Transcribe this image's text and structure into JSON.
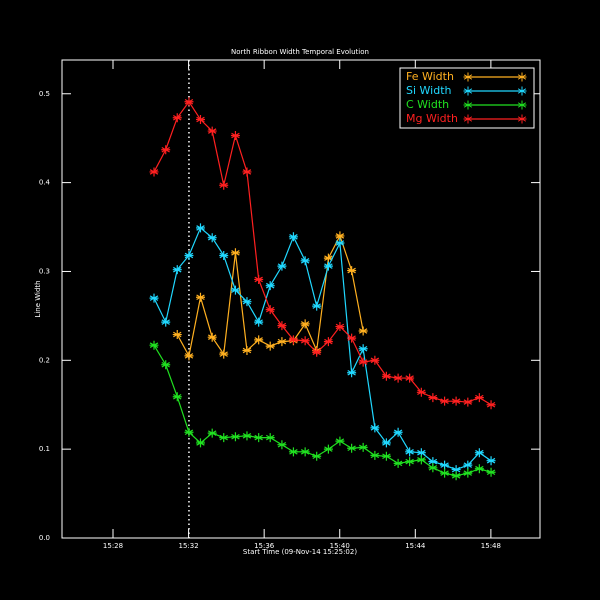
{
  "chart_data": {
    "type": "line",
    "title": "North Ribbon Width Temporal Evolution",
    "xlabel": "Start Time (09-Nov-14 15:25:02)",
    "ylabel": "Line Width",
    "x": [
      30.17,
      30.79,
      31.4,
      32.02,
      32.63,
      33.25,
      33.86,
      34.48,
      35.09,
      35.71,
      36.32,
      36.94,
      37.55,
      38.17,
      38.78,
      39.4,
      40.01,
      40.63,
      41.24,
      41.86,
      42.47,
      43.09,
      43.7,
      44.32,
      44.93,
      45.55,
      46.16,
      46.78,
      47.39,
      48.01
    ],
    "series": [
      {
        "name": "Fe Width",
        "color": "#ffb020",
        "values": [
          null,
          null,
          0.229,
          0.205,
          0.271,
          0.226,
          0.207,
          0.321,
          0.211,
          0.223,
          0.216,
          0.221,
          0.222,
          0.241,
          0.211,
          0.315,
          0.34,
          0.301,
          0.233,
          null,
          null,
          null,
          null,
          null,
          null,
          null,
          null,
          null,
          null,
          null
        ]
      },
      {
        "name": "Si Width",
        "color": "#20d8ff",
        "values": [
          0.27,
          0.243,
          0.302,
          0.318,
          0.349,
          0.338,
          0.318,
          0.279,
          0.266,
          0.243,
          0.284,
          0.306,
          0.339,
          0.312,
          0.261,
          0.306,
          0.332,
          0.186,
          0.213,
          0.124,
          0.107,
          0.119,
          0.097,
          0.096,
          0.086,
          0.082,
          0.077,
          0.082,
          0.096,
          0.087
        ]
      },
      {
        "name": "C Width",
        "color": "#20e020",
        "values": [
          0.217,
          0.195,
          0.159,
          0.119,
          0.107,
          0.118,
          0.113,
          0.114,
          0.115,
          0.113,
          0.113,
          0.105,
          0.097,
          0.097,
          0.092,
          0.1,
          0.109,
          0.101,
          0.102,
          0.093,
          0.092,
          0.084,
          0.086,
          0.088,
          0.079,
          0.073,
          0.07,
          0.073,
          0.078,
          0.074
        ]
      },
      {
        "name": "Mg Width",
        "color": "#ff2020",
        "values": [
          0.412,
          0.437,
          0.473,
          0.491,
          0.471,
          0.458,
          0.397,
          0.453,
          0.412,
          0.291,
          0.257,
          0.239,
          0.223,
          0.222,
          0.209,
          0.221,
          0.238,
          0.225,
          0.198,
          0.2,
          0.182,
          0.18,
          0.18,
          0.164,
          0.158,
          0.154,
          0.154,
          0.153,
          0.158,
          0.15
        ]
      }
    ],
    "xlim": [
      25.3,
      50.6
    ],
    "xticks": [
      {
        "value": 28,
        "label": "15:28"
      },
      {
        "value": 32,
        "label": "15:32"
      },
      {
        "value": 36,
        "label": "15:36"
      },
      {
        "value": 40,
        "label": "15:40"
      },
      {
        "value": 44,
        "label": "15:44"
      },
      {
        "value": 48,
        "label": "15:48"
      }
    ],
    "ylim": [
      0,
      0.538
    ],
    "yticks": [
      {
        "value": 0,
        "label": "0.0"
      },
      0.1,
      0.2,
      0.3,
      0.4,
      0.5
    ],
    "marker_x": 32.02,
    "legend": "top-right"
  }
}
